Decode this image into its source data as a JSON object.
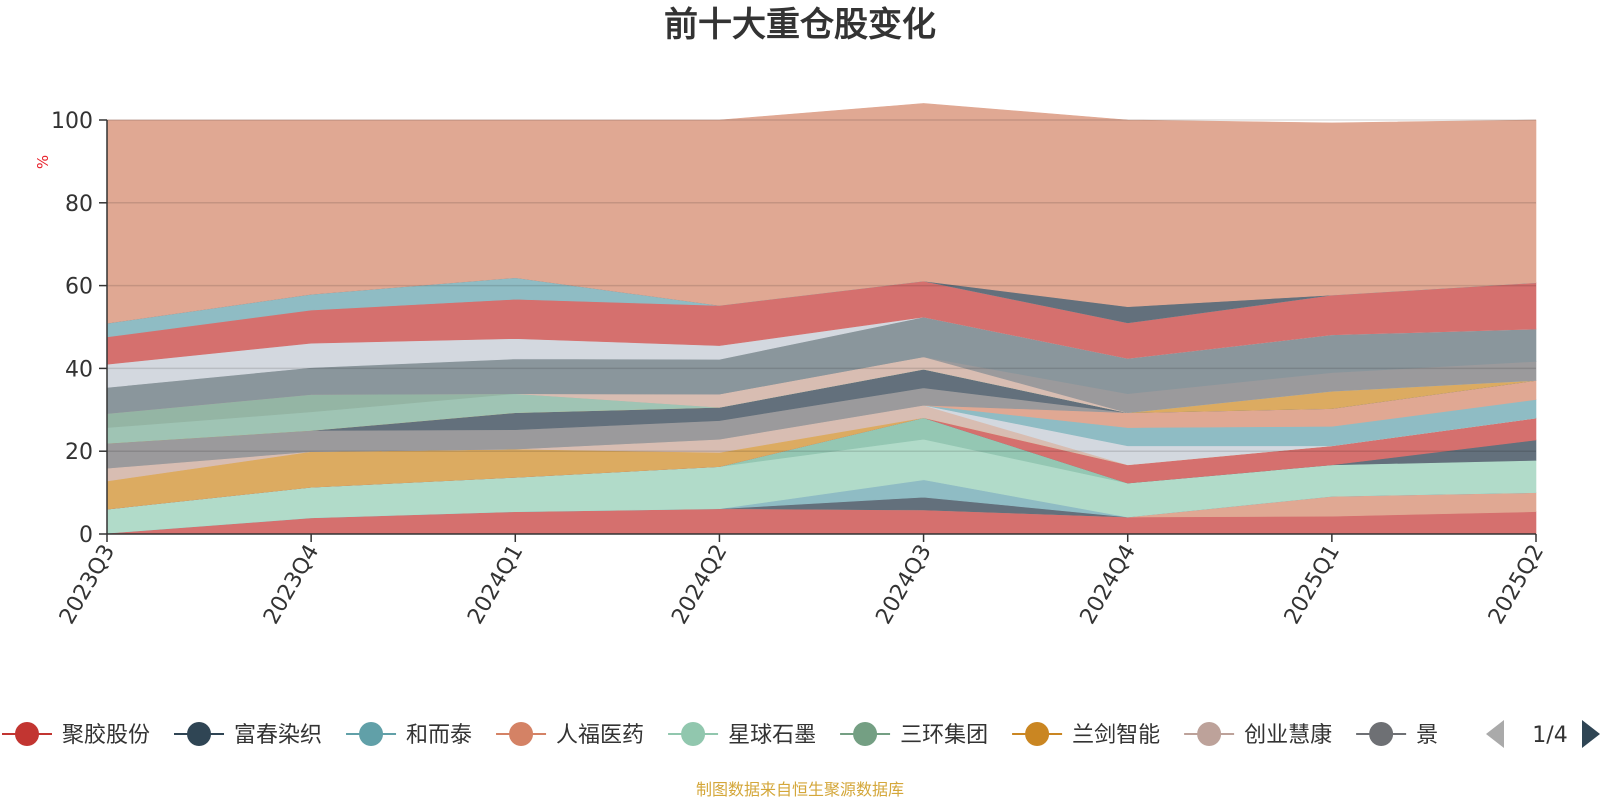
{
  "chart_data": {
    "type": "area",
    "title": "前十大重仓股变化",
    "ylabel": "%",
    "ylim": [
      0,
      100
    ],
    "yticks": [
      0,
      20,
      40,
      60,
      80,
      100
    ],
    "grid": true,
    "stacked": true,
    "categories": [
      "2023Q3",
      "2023Q4",
      "2024Q1",
      "2024Q2",
      "2024Q3",
      "2024Q4",
      "2025Q1",
      "2025Q2"
    ],
    "series": [
      {
        "name": "聚胶股份",
        "color": "#d5706e",
        "values": [
          0.2,
          3.9,
          5.4,
          6.1,
          5.8,
          4.1,
          4.3,
          5.4
        ]
      },
      {
        "name": "",
        "color": "#e0a893",
        "values": [
          0,
          0,
          0,
          0,
          0,
          0,
          4.8,
          4.6
        ]
      },
      {
        "name": "",
        "color": "#63707c",
        "values": [
          0,
          0,
          0,
          0,
          3.1,
          0,
          0,
          0
        ]
      },
      {
        "name": "",
        "color": "#8fbcc4",
        "values": [
          0,
          0,
          0,
          0,
          4.2,
          0,
          0,
          0
        ]
      },
      {
        "name": "星球石墨",
        "color": "#b1dbc9",
        "values": [
          5.8,
          7.4,
          8.3,
          10.2,
          9.8,
          8.2,
          7.6,
          7.8
        ]
      },
      {
        "name": "",
        "color": "#94c7b3",
        "values": [
          0,
          0,
          0,
          0,
          5.2,
          0,
          0,
          0
        ]
      },
      {
        "name": "",
        "color": "#63707c",
        "values": [
          0,
          0,
          0,
          0,
          0,
          0,
          0,
          4.9
        ]
      },
      {
        "name": "",
        "color": "#d5706e",
        "values": [
          0,
          0,
          0,
          0,
          0,
          4.4,
          4.6,
          5.3
        ]
      },
      {
        "name": "兰剑智能",
        "color": "#dcab61",
        "values": [
          6.8,
          8.6,
          6.8,
          3.4,
          0,
          0,
          0,
          0
        ]
      },
      {
        "name": "创业慧康",
        "color": "#d8bdb2",
        "values": [
          3.1,
          0,
          0,
          3.2,
          3.0,
          0,
          0,
          0
        ]
      },
      {
        "name": "",
        "color": "#d3d8df",
        "values": [
          0,
          0,
          0,
          0,
          0,
          4.6,
          0,
          0
        ]
      },
      {
        "name": "",
        "color": "#8fbcc4",
        "values": [
          0,
          0,
          0,
          0,
          0,
          4.4,
          4.7,
          4.5
        ]
      },
      {
        "name": "",
        "color": "#e0a893",
        "values": [
          0,
          0,
          0,
          0,
          0,
          3.6,
          4.3,
          4.6
        ]
      },
      {
        "name": "",
        "color": "#9b9a9c",
        "values": [
          6.0,
          5.1,
          4.7,
          4.5,
          4.2,
          0,
          0,
          0
        ]
      },
      {
        "name": "",
        "color": "#63707c",
        "values": [
          0,
          0,
          4.1,
          3.2,
          4.5,
          0,
          0,
          0
        ]
      },
      {
        "name": "",
        "color": "#dcab61",
        "values": [
          0,
          0,
          0,
          0,
          0,
          0,
          4.2,
          0
        ]
      },
      {
        "name": "",
        "color": "#9fc4b4",
        "values": [
          3.8,
          4.5,
          4.6,
          0,
          0,
          0,
          0,
          0
        ]
      },
      {
        "name": "",
        "color": "#94b5a4",
        "values": [
          3.4,
          4.2,
          0,
          0,
          0,
          0,
          0,
          0
        ]
      },
      {
        "name": "",
        "color": "#d8bdb2",
        "values": [
          0,
          0,
          0,
          3.2,
          3.0,
          0,
          0,
          0
        ]
      },
      {
        "name": "",
        "color": "#9b9a9c",
        "values": [
          0,
          0,
          0,
          0,
          0,
          4.6,
          4.5,
          4.6
        ]
      },
      {
        "name": "",
        "color": "#8a969c",
        "values": [
          6.3,
          6.5,
          8.4,
          8.4,
          9.6,
          8.5,
          9.1,
          7.8
        ]
      },
      {
        "name": "",
        "color": "#d3d8df",
        "values": [
          5.6,
          5.9,
          4.9,
          3.3,
          0,
          0,
          0,
          0
        ]
      },
      {
        "name": "",
        "color": "#d5706e",
        "values": [
          6.6,
          8.0,
          9.5,
          9.7,
          8.7,
          8.6,
          9.6,
          11.2
        ]
      },
      {
        "name": "",
        "color": "#8fbcc4",
        "values": [
          3.3,
          3.8,
          5.2,
          0,
          0,
          0,
          0,
          0
        ]
      },
      {
        "name": "",
        "color": "#63707c",
        "values": [
          0,
          0,
          0,
          0,
          0,
          3.9,
          0,
          0
        ]
      },
      {
        "name": "",
        "color": "#e0a893",
        "values": [
          49.1,
          42.1,
          38.1,
          44.8,
          42.9,
          45.1,
          41.6,
          39.3
        ]
      }
    ],
    "legend": {
      "position": "bottom",
      "items": [
        {
          "name": "聚胶股份",
          "color": "#c23531"
        },
        {
          "name": "富春染织",
          "color": "#2f4554"
        },
        {
          "name": "和而泰",
          "color": "#61a0a8"
        },
        {
          "name": "人福医药",
          "color": "#d48265"
        },
        {
          "name": "星球石墨",
          "color": "#91c7ae"
        },
        {
          "name": "三环集团",
          "color": "#749f83"
        },
        {
          "name": "兰剑智能",
          "color": "#ca8622"
        },
        {
          "name": "创业慧康",
          "color": "#bda29a"
        },
        {
          "name": "景",
          "color": "#6e7074"
        }
      ],
      "page": "1/4"
    },
    "source": "制图数据来自恒生聚源数据库"
  }
}
